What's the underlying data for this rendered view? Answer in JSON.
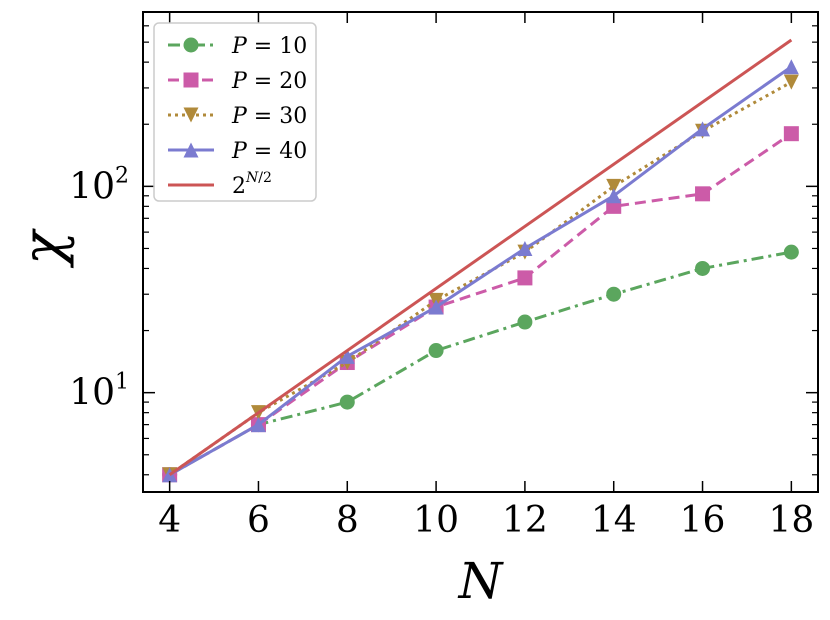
{
  "chart_data": {
    "type": "line",
    "xlabel": "N",
    "ylabel": "χ",
    "xlim": [
      3.4,
      18.6
    ],
    "ylim": [
      3.3,
      700
    ],
    "yscale": "log",
    "x_ticks": [
      4,
      6,
      8,
      10,
      12,
      14,
      16,
      18
    ],
    "y_ticks": [
      {
        "value": 10,
        "base": "10",
        "exp": "1"
      },
      {
        "value": 100,
        "base": "10",
        "exp": "2"
      }
    ],
    "grid": false,
    "legend_position": "top-left",
    "series": [
      {
        "name": "P = 10",
        "p_value": "10",
        "color": "#5ba65e",
        "marker": "circle",
        "line": "dashdot",
        "x": [
          4,
          6,
          8,
          10,
          12,
          14,
          16,
          18
        ],
        "values": [
          4,
          7,
          9,
          16,
          22,
          30,
          40,
          48
        ]
      },
      {
        "name": "P = 20",
        "p_value": "20",
        "color": "#cc5ba8",
        "marker": "square",
        "line": "dashed",
        "x": [
          4,
          6,
          8,
          10,
          12,
          14,
          16,
          18
        ],
        "values": [
          4,
          7,
          14,
          26,
          36,
          80,
          92,
          180
        ]
      },
      {
        "name": "P = 30",
        "p_value": "30",
        "color": "#b08a3a",
        "marker": "triangle-down",
        "line": "dotted",
        "x": [
          4,
          6,
          8,
          10,
          12,
          14,
          16,
          18
        ],
        "values": [
          4,
          8,
          14,
          28,
          48,
          100,
          185,
          320
        ]
      },
      {
        "name": "P = 40",
        "p_value": "40",
        "color": "#7b7bd0",
        "marker": "triangle-up",
        "line": "solid",
        "x": [
          4,
          6,
          8,
          10,
          12,
          14,
          16,
          18
        ],
        "values": [
          4,
          7,
          15,
          26,
          50,
          90,
          190,
          380
        ]
      },
      {
        "name": "2^(N/2)",
        "color": "#cc5555",
        "marker": "none",
        "line": "solid",
        "x": [
          4,
          18
        ],
        "values": [
          4,
          512
        ]
      }
    ]
  }
}
